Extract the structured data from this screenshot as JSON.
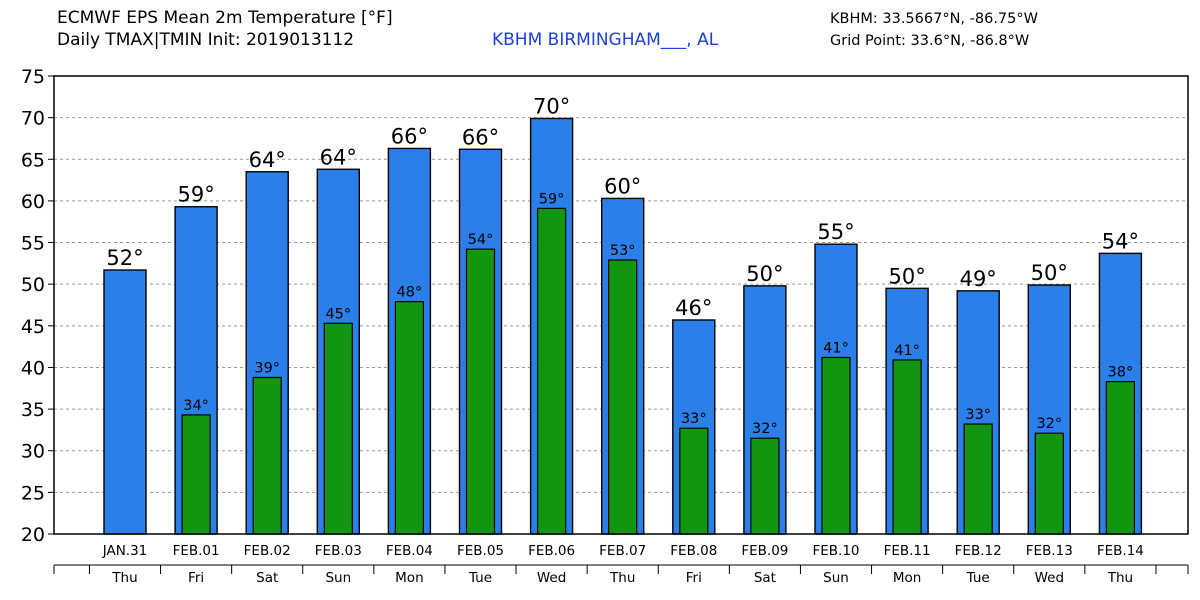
{
  "header": {
    "title_line1": "ECMWF EPS Mean 2m Temperature [°F]",
    "title_line2": "Daily TMAX|TMIN Init: 2019013112",
    "station": "KBHM BIRMINGHAM___, AL",
    "station_coords": "KBHM: 33.5667°N, -86.75°W",
    "grid_point": "Grid Point: 33.6°N, -86.8°W"
  },
  "colors": {
    "tmax_bar": "#2b7fe8",
    "tmin_bar": "#129612",
    "station_text": "#1c3fe0",
    "grid": "#9a9a9a"
  },
  "chart_data": {
    "type": "bar",
    "title": "ECMWF EPS Mean 2m Temperature [°F]",
    "xlabel": "",
    "ylabel": "",
    "ylim": [
      20,
      75
    ],
    "yticks": [
      20,
      25,
      30,
      35,
      40,
      45,
      50,
      55,
      60,
      65,
      70,
      75
    ],
    "grid": true,
    "degree_symbol": "°",
    "categories": [
      "JAN.31",
      "FEB.01",
      "FEB.02",
      "FEB.03",
      "FEB.04",
      "FEB.05",
      "FEB.06",
      "FEB.07",
      "FEB.08",
      "FEB.09",
      "FEB.10",
      "FEB.11",
      "FEB.12",
      "FEB.13",
      "FEB.14"
    ],
    "weekdays": [
      "Thu",
      "Fri",
      "Sat",
      "Sun",
      "Mon",
      "Tue",
      "Wed",
      "Thu",
      "Fri",
      "Sat",
      "Sun",
      "Mon",
      "Tue",
      "Wed",
      "Thu"
    ],
    "series": [
      {
        "name": "TMAX",
        "values": [
          51.7,
          59.3,
          63.5,
          63.8,
          66.3,
          66.2,
          69.9,
          60.3,
          45.7,
          49.8,
          54.8,
          49.5,
          49.2,
          49.9,
          53.7
        ],
        "labels": [
          "52",
          "59",
          "64",
          "64",
          "66",
          "66",
          "70",
          "60",
          "46",
          "50",
          "55",
          "50",
          "49",
          "50",
          "54"
        ]
      },
      {
        "name": "TMIN",
        "values": [
          null,
          34.3,
          38.8,
          45.3,
          47.9,
          54.2,
          59.1,
          52.9,
          32.7,
          31.5,
          41.2,
          40.9,
          33.2,
          32.1,
          38.3
        ],
        "labels": [
          null,
          "34",
          "39",
          "45",
          "48",
          "54",
          "59",
          "53",
          "33",
          "32",
          "41",
          "41",
          "33",
          "32",
          "38"
        ]
      }
    ]
  }
}
